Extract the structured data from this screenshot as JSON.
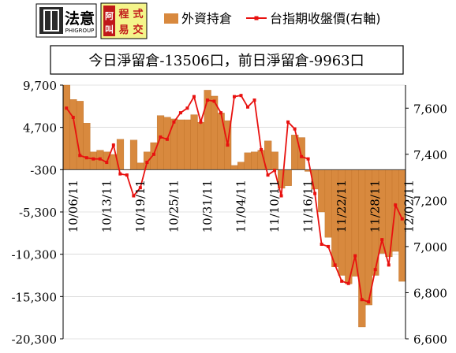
{
  "logos": {
    "logo1_text": "法意",
    "logo1_sub": "PHIGROUP",
    "logo2_chars": [
      "阿",
      "叫",
      "程",
      "易",
      "式",
      "交"
    ]
  },
  "legend": {
    "bar_label": "外資持倉",
    "line_label": "台指期收盤價(右軸)"
  },
  "headline": "今日淨留倉-13506口，前日淨留倉-9963口",
  "colors": {
    "bar": "#D8893E",
    "bar_edge": "#B86A22",
    "line": "#E8110F",
    "headline_border": "#000000",
    "grid": "#C8C8C8"
  },
  "chart_data": {
    "type": "bar+line",
    "title": "今日淨留倉-13506口，前日淨留倉-9963口",
    "left_axis": {
      "min": -20300,
      "max": 9700,
      "ticks": [
        "9,700",
        "4,700",
        "-300",
        "-5,300",
        "-10,300",
        "-15,300",
        "-20,300"
      ],
      "tick_values": [
        9700,
        4700,
        -300,
        -5300,
        -10300,
        -15300,
        -20300
      ]
    },
    "right_axis": {
      "min": 6600,
      "max": 7700,
      "ticks": [
        "7,600",
        "7,400",
        "7,200",
        "7,000",
        "6,800",
        "6,600"
      ],
      "tick_values": [
        7600,
        7400,
        7200,
        7000,
        6800,
        6600
      ]
    },
    "x_tick_labels": [
      "10/06/11",
      "10/13/11",
      "10/19/11",
      "10/25/11",
      "10/31/11",
      "11/04/11",
      "11/10/11",
      "11/16/11",
      "11/22/11",
      "11/28/11",
      "12/02/11"
    ],
    "x_tick_indices": [
      1,
      6,
      11,
      16,
      21,
      26,
      31,
      36,
      41,
      46,
      51
    ],
    "series": [
      {
        "name": "外資持倉",
        "kind": "bar",
        "axis": "left",
        "values": [
          9700,
          8000,
          7800,
          5200,
          1800,
          2000,
          1800,
          1500,
          3300,
          -300,
          3200,
          500,
          1800,
          2900,
          6100,
          5900,
          5700,
          5600,
          5600,
          6200,
          5300,
          9100,
          8400,
          6400,
          5500,
          200,
          600,
          1700,
          1800,
          2000,
          3100,
          1800,
          -2500,
          -2200,
          3800,
          3500,
          -500,
          -2600,
          -5300,
          -8300,
          -11800,
          -12800,
          -13800,
          -12900,
          -18900,
          -16300,
          -12800,
          -10200,
          -10600,
          -9963,
          -13506
        ]
      },
      {
        "name": "台指期收盤價(右軸)",
        "kind": "line",
        "axis": "right",
        "values": [
          7600,
          7560,
          7395,
          7385,
          7380,
          7380,
          7365,
          7440,
          7315,
          7310,
          7220,
          7255,
          7365,
          7400,
          7475,
          7465,
          7540,
          7580,
          7600,
          7650,
          7540,
          7635,
          7630,
          7580,
          7440,
          7650,
          7655,
          7605,
          7635,
          7420,
          7310,
          7330,
          7220,
          7540,
          7510,
          7390,
          7380,
          7230,
          7010,
          7000,
          6920,
          6850,
          6840,
          6960,
          6770,
          6760,
          6900,
          7030,
          6920,
          7180,
          7120
        ]
      }
    ]
  }
}
